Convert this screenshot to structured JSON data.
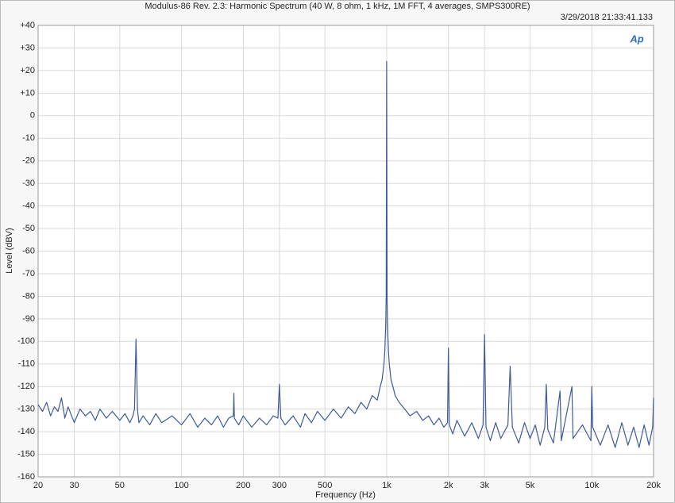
{
  "chart_data": {
    "type": "line",
    "title": "Modulus-86 Rev. 2.3: Harmonic Spectrum (40 W, 8 ohm, 1 kHz, 1M FFT, 4 averages, SMPS300RE)",
    "timestamp": "3/29/2018 21:33:41.133",
    "logo": "Ap",
    "x_label": "Frequency (Hz)",
    "y_label": "Level (dBV)",
    "xscale": "log",
    "grid": true,
    "xlim": [
      20,
      20000
    ],
    "ylim": [
      -160,
      40
    ],
    "xticks": [
      20,
      30,
      50,
      100,
      200,
      300,
      500,
      {
        "value": 1000,
        "label": "1k"
      },
      {
        "value": 2000,
        "label": "2k"
      },
      {
        "value": 3000,
        "label": "3k"
      },
      {
        "value": 5000,
        "label": "5k"
      },
      {
        "value": 10000,
        "label": "10k"
      },
      {
        "value": 20000,
        "label": "20k"
      }
    ],
    "yticks": [
      {
        "value": 40,
        "label": "+40"
      },
      {
        "value": 30,
        "label": "+30"
      },
      {
        "value": 20,
        "label": "+20"
      },
      {
        "value": 10,
        "label": "+10"
      },
      0,
      -10,
      -20,
      -30,
      -40,
      -50,
      -60,
      -70,
      -80,
      -90,
      -100,
      -110,
      -120,
      -130,
      -140,
      -150,
      -160
    ],
    "x": [
      20,
      21,
      22,
      23,
      24,
      25,
      26,
      27,
      28,
      30,
      32,
      34,
      36,
      38,
      40,
      43,
      46,
      50,
      53,
      56,
      58,
      59,
      60,
      61,
      62,
      65,
      70,
      75,
      80,
      90,
      100,
      110,
      120,
      130,
      140,
      150,
      160,
      170,
      179,
      180,
      181,
      190,
      200,
      220,
      240,
      260,
      280,
      295,
      300,
      305,
      320,
      350,
      380,
      400,
      430,
      460,
      500,
      550,
      600,
      650,
      700,
      750,
      800,
      850,
      900,
      930,
      950,
      970,
      980,
      990,
      995,
      1000,
      1005,
      1010,
      1020,
      1030,
      1050,
      1080,
      1100,
      1150,
      1200,
      1300,
      1400,
      1500,
      1600,
      1700,
      1800,
      1900,
      1980,
      2000,
      2020,
      2100,
      2200,
      2400,
      2600,
      2800,
      2950,
      3000,
      3050,
      3200,
      3400,
      3600,
      3900,
      4000,
      4100,
      4400,
      4700,
      5000,
      5300,
      5600,
      5900,
      6000,
      6100,
      6500,
      7000,
      7100,
      8000,
      8100,
      9000,
      9900,
      10000,
      10100,
      11000,
      12000,
      13000,
      14000,
      15000,
      16000,
      17000,
      18000,
      19000,
      19800,
      20000
    ],
    "series": [
      {
        "color": "#3d5a99",
        "values": [
          -128,
          -131,
          -127,
          -133,
          -129,
          -131,
          -125,
          -134,
          -129,
          -136,
          -130,
          -133,
          -131,
          -135,
          -130,
          -134,
          -131,
          -135,
          -132,
          -136,
          -133,
          -130,
          -99,
          -130,
          -136,
          -133,
          -137,
          -132,
          -136,
          -133,
          -137,
          -132,
          -138,
          -134,
          -137,
          -133,
          -138,
          -134,
          -133,
          -123,
          -134,
          -137,
          -133,
          -138,
          -134,
          -137,
          -133,
          -134,
          -119,
          -134,
          -137,
          -133,
          -138,
          -132,
          -136,
          -131,
          -135,
          -130,
          -134,
          -129,
          -132,
          -127,
          -130,
          -124,
          -126,
          -120,
          -117,
          -110,
          -104,
          -92,
          -80,
          24,
          -82,
          -93,
          -104,
          -110,
          -117,
          -121,
          -124,
          -127,
          -129,
          -133,
          -131,
          -135,
          -133,
          -137,
          -134,
          -138,
          -136,
          -103,
          -137,
          -141,
          -135,
          -142,
          -136,
          -143,
          -137,
          -97,
          -138,
          -144,
          -136,
          -143,
          -137,
          -111,
          -138,
          -145,
          -136,
          -143,
          -137,
          -146,
          -138,
          -119,
          -139,
          -145,
          -122,
          -144,
          -120,
          -143,
          -137,
          -144,
          -120,
          -138,
          -146,
          -137,
          -147,
          -136,
          -146,
          -138,
          -147,
          -137,
          -146,
          -138,
          -125
        ]
      }
    ]
  }
}
